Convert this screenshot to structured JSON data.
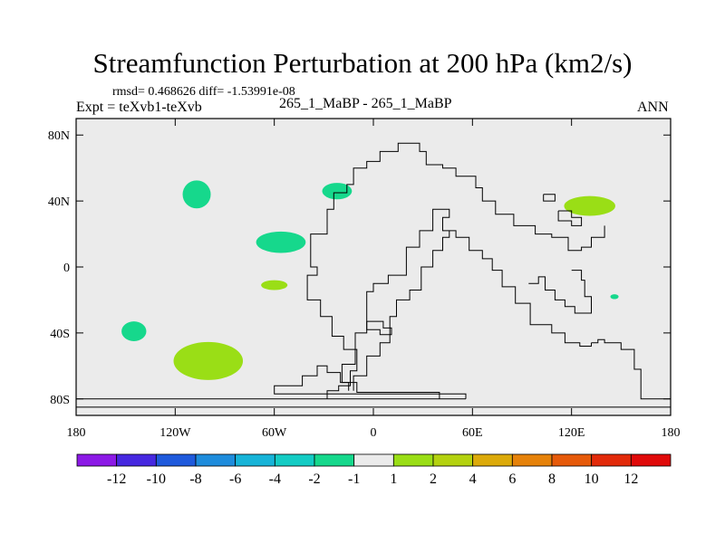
{
  "chart_data": {
    "type": "heatmap",
    "title": "Streamfunction Perturbation at 200 hPa (km2/s)",
    "stats_line": "rmsd= 0.468626 diff= -1.53991e-08",
    "subtitle_left": "Expt = teXvb1-teXvb",
    "subtitle_center": "265_1_MaBP - 265_1_MaBP",
    "subtitle_right": "ANN",
    "x_ticks": [
      {
        "value": -180,
        "label": "180"
      },
      {
        "value": -120,
        "label": "120W"
      },
      {
        "value": -60,
        "label": "60W"
      },
      {
        "value": 0,
        "label": "0"
      },
      {
        "value": 60,
        "label": "60E"
      },
      {
        "value": 120,
        "label": "120E"
      },
      {
        "value": 180,
        "label": "180"
      }
    ],
    "y_ticks": [
      {
        "value": 80,
        "label": "80N"
      },
      {
        "value": 40,
        "label": "40N"
      },
      {
        "value": 0,
        "label": "0"
      },
      {
        "value": -40,
        "label": "40S"
      },
      {
        "value": -80,
        "label": "80S"
      }
    ],
    "xlim": [
      -180,
      180
    ],
    "ylim": [
      -90,
      90
    ],
    "colorbar": {
      "labels": [
        "-12",
        "-10",
        "-8",
        "-6",
        "-4",
        "-2",
        "-1",
        "1",
        "2",
        "4",
        "6",
        "8",
        "10",
        "12"
      ],
      "colors": [
        "#8c1ae6",
        "#4628e0",
        "#1f5adc",
        "#1e8cdc",
        "#17b4d8",
        "#14ccc4",
        "#16d88c",
        "#ebebeb",
        "#9ade16",
        "#b4d20f",
        "#dcaa0a",
        "#e6820a",
        "#e65a0a",
        "#e22a0a",
        "#e00a0a"
      ]
    },
    "anomaly_regions": [
      {
        "lon": -107,
        "lat": 44,
        "rlon": 8.5,
        "rlat": 8.5,
        "color": "#16d88c"
      },
      {
        "lon": -22,
        "lat": 46,
        "rlon": 9,
        "rlat": 5,
        "color": "#16d88c"
      },
      {
        "lon": -56,
        "lat": 15,
        "rlon": 15,
        "rlat": 6.5,
        "color": "#16d88c"
      },
      {
        "lon": -60,
        "lat": -11,
        "rlon": 8,
        "rlat": 3,
        "color": "#9ade16"
      },
      {
        "lon": -145,
        "lat": -39,
        "rlon": 7.5,
        "rlat": 6,
        "color": "#16d88c"
      },
      {
        "lon": -100,
        "lat": -57,
        "rlon": 21,
        "rlat": 11.5,
        "color": "#9ade16"
      },
      {
        "lon": 131,
        "lat": 37,
        "rlon": 15.5,
        "rlat": 6,
        "color": "#9ade16"
      },
      {
        "lon": 146,
        "lat": -18,
        "rlon": 2.5,
        "rlat": 1.5,
        "color": "#16d88c"
      }
    ],
    "coastlines": [
      [
        [
          -28,
          -80
        ],
        [
          -28,
          -75
        ],
        [
          -21,
          -75
        ],
        [
          -21,
          -72
        ],
        [
          -14,
          -72
        ],
        [
          -14,
          -63
        ],
        [
          -10,
          -63
        ],
        [
          -10,
          -50
        ],
        [
          -18,
          -50
        ],
        [
          -18,
          -42
        ],
        [
          -25,
          -42
        ],
        [
          -25,
          -30
        ],
        [
          -32,
          -30
        ],
        [
          -32,
          -20
        ],
        [
          -40,
          -20
        ],
        [
          -40,
          -5
        ],
        [
          -34,
          -5
        ],
        [
          -34,
          0
        ],
        [
          -38,
          0
        ],
        [
          -38,
          20
        ],
        [
          -28,
          20
        ],
        [
          -28,
          35
        ],
        [
          -24,
          35
        ],
        [
          -24,
          45
        ],
        [
          -16,
          45
        ],
        [
          -16,
          50
        ],
        [
          -12,
          50
        ],
        [
          -12,
          60
        ],
        [
          -4,
          60
        ],
        [
          -4,
          64
        ],
        [
          4,
          64
        ],
        [
          4,
          70
        ],
        [
          15,
          70
        ],
        [
          15,
          75
        ],
        [
          28,
          75
        ],
        [
          28,
          70
        ],
        [
          32,
          70
        ],
        [
          32,
          62
        ],
        [
          42,
          62
        ],
        [
          42,
          60
        ],
        [
          50,
          60
        ],
        [
          50,
          55
        ],
        [
          62,
          55
        ],
        [
          62,
          48
        ],
        [
          66,
          48
        ],
        [
          66,
          40
        ],
        [
          74,
          40
        ],
        [
          74,
          32
        ],
        [
          85,
          32
        ],
        [
          85,
          25
        ],
        [
          98,
          25
        ],
        [
          98,
          20
        ],
        [
          108,
          20
        ],
        [
          108,
          18
        ],
        [
          118,
          18
        ],
        [
          118,
          10
        ],
        [
          126,
          10
        ],
        [
          126,
          12
        ],
        [
          132,
          12
        ],
        [
          132,
          18
        ],
        [
          140,
          18
        ],
        [
          140,
          25
        ]
      ],
      [
        [
          -15,
          -75
        ],
        [
          -15,
          -70
        ],
        [
          -19,
          -70
        ],
        [
          -19,
          -59
        ],
        [
          -11,
          -59
        ],
        [
          -11,
          -40
        ],
        [
          -4,
          -40
        ],
        [
          -4,
          -15
        ],
        [
          0,
          -15
        ],
        [
          0,
          -10
        ],
        [
          9,
          -10
        ],
        [
          9,
          -5
        ],
        [
          20,
          -5
        ],
        [
          20,
          12
        ],
        [
          28,
          12
        ],
        [
          28,
          22
        ],
        [
          36,
          22
        ],
        [
          36,
          35
        ],
        [
          46,
          35
        ],
        [
          46,
          30
        ],
        [
          42,
          30
        ],
        [
          42,
          22
        ],
        [
          50,
          22
        ],
        [
          50,
          18
        ],
        [
          58,
          18
        ],
        [
          58,
          10
        ],
        [
          66,
          10
        ],
        [
          66,
          5
        ],
        [
          72,
          5
        ],
        [
          72,
          -2
        ],
        [
          78,
          -2
        ],
        [
          78,
          -12
        ],
        [
          86,
          -12
        ],
        [
          86,
          -22
        ],
        [
          95,
          -22
        ],
        [
          95,
          -35
        ],
        [
          108,
          -35
        ],
        [
          108,
          -40
        ],
        [
          116,
          -40
        ],
        [
          116,
          -46
        ],
        [
          125,
          -46
        ],
        [
          125,
          -48
        ],
        [
          132,
          -48
        ],
        [
          132,
          -46
        ]
      ],
      [
        [
          -12,
          -75
        ],
        [
          -12,
          -66
        ],
        [
          -4,
          -66
        ],
        [
          -4,
          -54
        ],
        [
          4,
          -54
        ],
        [
          4,
          -46
        ],
        [
          10,
          -46
        ],
        [
          10,
          -30
        ],
        [
          14,
          -30
        ],
        [
          14,
          -20
        ],
        [
          22,
          -20
        ],
        [
          22,
          -14
        ],
        [
          29,
          -14
        ],
        [
          29,
          0
        ],
        [
          36,
          0
        ],
        [
          36,
          10
        ],
        [
          42,
          10
        ],
        [
          42,
          18
        ],
        [
          46,
          18
        ],
        [
          46,
          22
        ]
      ],
      [
        [
          94,
          -10
        ],
        [
          100,
          -10
        ],
        [
          100,
          -6
        ],
        [
          104,
          -6
        ],
        [
          104,
          -14
        ],
        [
          110,
          -14
        ],
        [
          110,
          -20
        ],
        [
          116,
          -20
        ],
        [
          116,
          -24
        ],
        [
          122,
          -24
        ],
        [
          122,
          -28
        ],
        [
          132,
          -28
        ],
        [
          132,
          -18
        ],
        [
          128,
          -18
        ],
        [
          128,
          -8
        ],
        [
          126,
          -8
        ],
        [
          126,
          -2
        ],
        [
          120,
          -2
        ]
      ],
      [
        [
          -4,
          -33
        ],
        [
          6,
          -33
        ],
        [
          6,
          -37
        ],
        [
          11,
          -37
        ],
        [
          11,
          -41
        ],
        [
          4,
          -41
        ],
        [
          4,
          -38
        ],
        [
          -4,
          -38
        ],
        [
          -4,
          -33
        ]
      ],
      [
        [
          103,
          44
        ],
        [
          110,
          44
        ],
        [
          110,
          40
        ],
        [
          103,
          40
        ],
        [
          103,
          44
        ]
      ],
      [
        [
          112,
          34
        ],
        [
          120,
          34
        ],
        [
          120,
          30
        ],
        [
          126,
          30
        ],
        [
          126,
          25
        ],
        [
          120,
          25
        ],
        [
          120,
          28
        ],
        [
          112,
          28
        ],
        [
          112,
          34
        ]
      ],
      [
        [
          56,
          -80
        ],
        [
          56,
          -77
        ],
        [
          -60,
          -77
        ],
        [
          -60,
          -72
        ],
        [
          -43,
          -72
        ],
        [
          -43,
          -66
        ],
        [
          -34,
          -66
        ],
        [
          -34,
          -60
        ],
        [
          -28,
          -60
        ],
        [
          -28,
          -64
        ],
        [
          -20,
          -64
        ],
        [
          -20,
          -70
        ],
        [
          -10,
          -70
        ],
        [
          -10,
          -76
        ],
        [
          40,
          -76
        ],
        [
          40,
          -80
        ]
      ],
      [
        [
          -180,
          -80
        ],
        [
          56,
          -80
        ]
      ],
      [
        [
          -180,
          -85
        ],
        [
          180,
          -85
        ]
      ],
      [
        [
          132,
          -46
        ],
        [
          136,
          -46
        ],
        [
          136,
          -44
        ],
        [
          140,
          -44
        ],
        [
          140,
          -46
        ],
        [
          150,
          -46
        ],
        [
          150,
          -50
        ],
        [
          158,
          -50
        ],
        [
          158,
          -62
        ],
        [
          162,
          -62
        ],
        [
          162,
          -80
        ],
        [
          180,
          -80
        ]
      ]
    ]
  }
}
